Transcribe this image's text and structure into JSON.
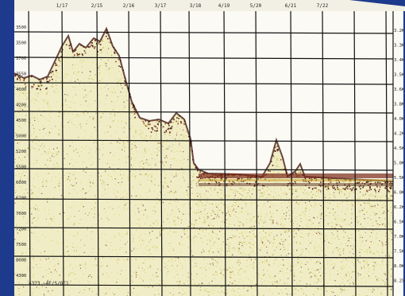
{
  "top_labels": [
    "1/17",
    "2/15",
    "2/16",
    "3/17",
    "3/18",
    "4/19",
    "5/20",
    "6/21",
    "7/22"
  ],
  "left_labels": [
    "3500",
    "3500",
    "3700",
    "3550",
    "4000",
    "4200",
    "4500",
    "5000",
    "5200",
    "5500",
    "6000",
    "6200",
    "7000",
    "7200",
    "7500",
    "8000",
    "4300"
  ],
  "right_labels": [
    "3.2K",
    "3.3K",
    "3.4K",
    "3.5K",
    "3.6K",
    "3.8K",
    "4.0K",
    "4.2K",
    "4.5K",
    "5.0K",
    "5.5K",
    "6.0K",
    "6.2K",
    "6.5K",
    "7.0K",
    "7.5K",
    "8.0K",
    "8.25K"
  ],
  "bottom_note": "4323 ~4E/S/OE1",
  "colors": {
    "background": "#1e3a8c",
    "paper": "#fbfaf4",
    "echo_light": "#d9cf5a",
    "echo_dark": "#5a1a12",
    "grid": "#111111"
  }
}
